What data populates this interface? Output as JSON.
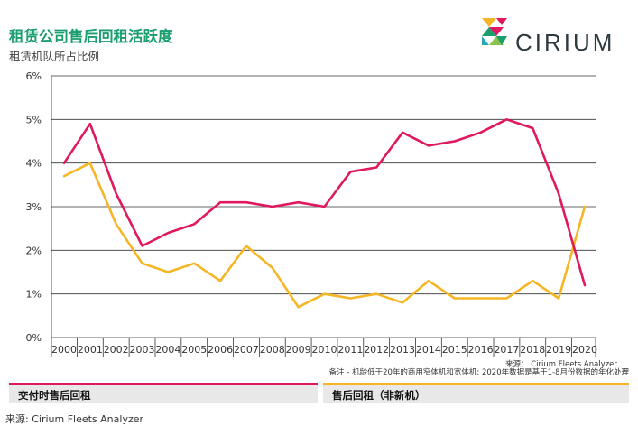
{
  "header": {
    "title": "租赁公司售后回租活跃度",
    "subtitle": "租赁机队所占比例",
    "brand": "CIRIUM"
  },
  "colors": {
    "title": "#1a9e6e",
    "series_new": "#e0185f",
    "series_used": "#f5b626"
  },
  "chart_data": {
    "type": "line",
    "x": [
      "2000",
      "2001",
      "2002",
      "2003",
      "2004",
      "2005",
      "2006",
      "2007",
      "2008",
      "2009",
      "2010",
      "2011",
      "2012",
      "2013",
      "2014",
      "2015",
      "2016",
      "2017",
      "2018",
      "2019",
      "2020"
    ],
    "series": [
      {
        "name": "交付时售后回租",
        "color": "#e0185f",
        "values": [
          4.0,
          4.9,
          3.3,
          2.1,
          2.4,
          2.6,
          3.1,
          3.1,
          3.0,
          3.1,
          3.0,
          3.8,
          3.9,
          4.7,
          4.4,
          4.5,
          4.7,
          5.0,
          4.8,
          3.3,
          1.2
        ]
      },
      {
        "name": "售后回租（非新机）",
        "color": "#f5b626",
        "values": [
          3.7,
          4.0,
          2.6,
          1.7,
          1.5,
          1.7,
          1.3,
          2.1,
          1.6,
          0.7,
          1.0,
          0.9,
          1.0,
          0.8,
          1.3,
          0.9,
          0.9,
          0.9,
          1.3,
          0.9,
          3.0
        ]
      }
    ],
    "y_ticks": [
      "0%",
      "1%",
      "2%",
      "3%",
      "4%",
      "5%",
      "6%"
    ],
    "ylim": [
      0,
      6
    ],
    "grid": true
  },
  "notes": {
    "source_small": "来源： Cirium Fleets Analyzer",
    "footnote": "备注 - 机龄低于20年的商用窄体机和宽体机;  2020年数据是基于1-8月份数据的年化处理",
    "source_bottom": "来源:  Cirium Fleets Analyzer"
  },
  "legend": {
    "left": "交付时售后回租",
    "right": "售后回租（非新机）"
  }
}
